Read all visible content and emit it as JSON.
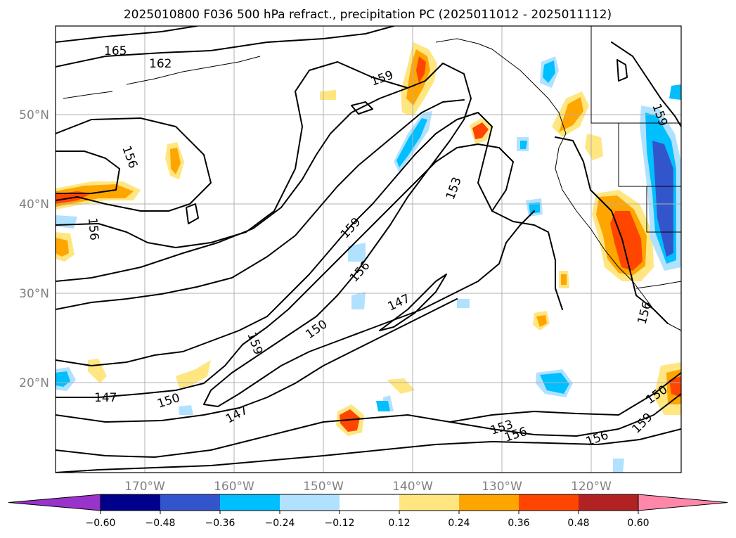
{
  "title": "2025010800 F036 500 hPa refract., precipitation PC (2025011012 - 2025011112)",
  "axes": {
    "lon_labels": [
      "170°W",
      "160°W",
      "150°W",
      "140°W",
      "130°W",
      "120°W"
    ],
    "lat_labels": [
      "50°N",
      "40°N",
      "30°N",
      "20°N"
    ],
    "lon_range": [
      -180,
      -110
    ],
    "lat_range": [
      10,
      60
    ],
    "grid": true
  },
  "colorbar": {
    "tick_labels": [
      "−0.60",
      "−0.48",
      "−0.36",
      "−0.24",
      "−0.12",
      "0.12",
      "0.24",
      "0.36",
      "0.48",
      "0.60"
    ],
    "colors": [
      "#9933cc",
      "#00008b",
      "#3355cc",
      "#00bfff",
      "#b0e2ff",
      "#ffffff",
      "#ffe680",
      "#ffa500",
      "#ff4500",
      "#b22222",
      "#ff88aa"
    ],
    "extend": "both"
  },
  "contour_labels": [
    "165",
    "162",
    "159",
    "159",
    "156",
    "156",
    "159",
    "153",
    "156",
    "147",
    "150",
    "159",
    "147",
    "150",
    "147",
    "153",
    "156",
    "156",
    "159",
    "150",
    "156"
  ]
}
